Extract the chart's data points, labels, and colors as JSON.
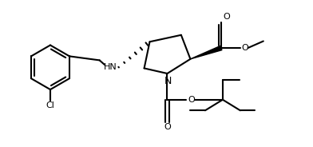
{
  "bg_color": "#ffffff",
  "line_color": "#000000",
  "lw": 1.5,
  "fig_width": 3.92,
  "fig_height": 1.84,
  "dpi": 100,
  "xlim": [
    0,
    10
  ],
  "ylim": [
    0,
    4.7
  ]
}
